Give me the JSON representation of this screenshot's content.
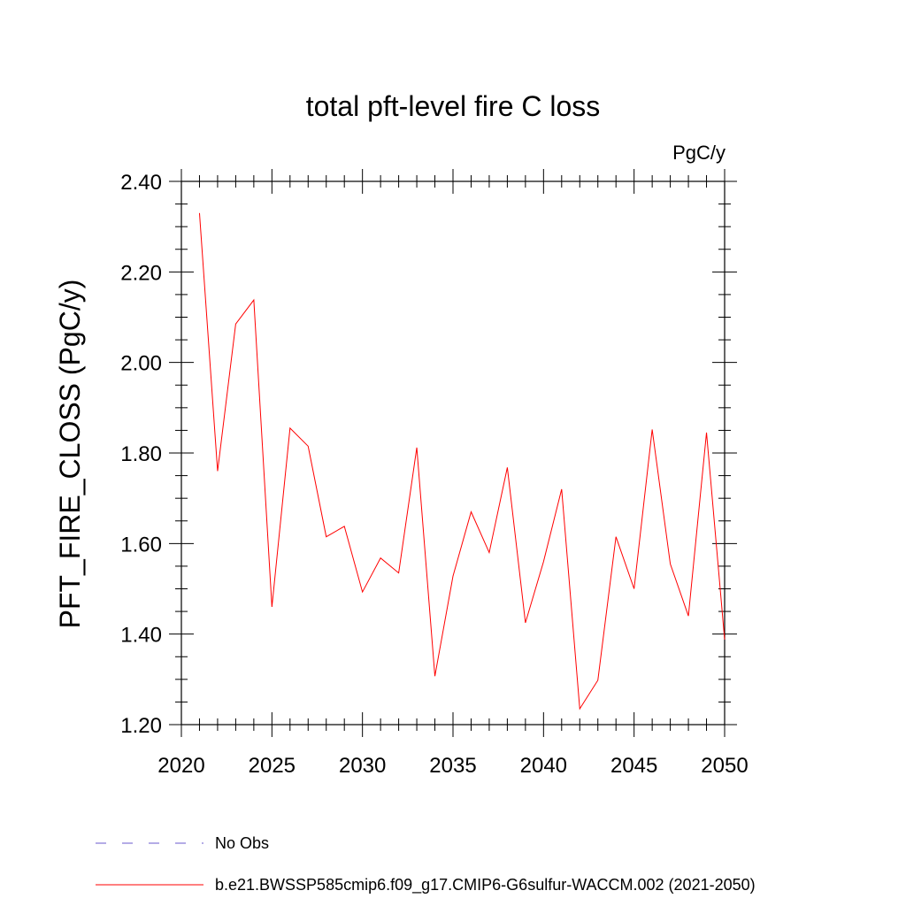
{
  "chart_data": {
    "type": "line",
    "title": "total pft-level fire C loss",
    "units_label": "PgC/y",
    "ylabel": "PFT_FIRE_CLOSS  (PgC/y)",
    "xlabel": "",
    "xlim": [
      2020,
      2050
    ],
    "ylim": [
      1.2,
      2.4
    ],
    "x_ticks": [
      2020,
      2025,
      2030,
      2035,
      2040,
      2045,
      2050
    ],
    "x_tick_labels": [
      "2020",
      "2025",
      "2030",
      "2035",
      "2040",
      "2045",
      "2050"
    ],
    "y_ticks": [
      1.2,
      1.4,
      1.6,
      1.8,
      2.0,
      2.2,
      2.4
    ],
    "y_tick_labels": [
      "1.20",
      "1.40",
      "1.60",
      "1.80",
      "2.00",
      "2.20",
      "2.40"
    ],
    "y_minor_step": 0.05,
    "x_minor_step": 1,
    "grid": false,
    "legend_position": "bottom",
    "series": [
      {
        "name": "b.e21.BWSSP585cmip6.f09_g17.CMIP6-G6sulfur-WACCM.002 (2021-2050)",
        "color": "#ff0000",
        "style": "solid",
        "x": [
          2021,
          2022,
          2023,
          2024,
          2025,
          2026,
          2027,
          2028,
          2029,
          2030,
          2031,
          2032,
          2033,
          2034,
          2035,
          2036,
          2037,
          2038,
          2039,
          2040,
          2041,
          2042,
          2043,
          2044,
          2045,
          2046,
          2047,
          2048,
          2049,
          2050
        ],
        "values": [
          2.33,
          1.76,
          2.085,
          2.138,
          1.46,
          1.855,
          1.815,
          1.615,
          1.638,
          1.493,
          1.568,
          1.535,
          1.812,
          1.307,
          1.528,
          1.67,
          1.58,
          1.768,
          1.425,
          1.56,
          1.72,
          1.235,
          1.298,
          1.615,
          1.5,
          1.852,
          1.555,
          1.44,
          1.845,
          1.388
        ]
      }
    ],
    "legend": [
      {
        "label": "No Obs",
        "color": "#6a5acd",
        "style": "dashed"
      },
      {
        "label": "b.e21.BWSSP585cmip6.f09_g17.CMIP6-G6sulfur-WACCM.002 (2021-2050)",
        "color": "#ff0000",
        "style": "solid"
      }
    ]
  }
}
